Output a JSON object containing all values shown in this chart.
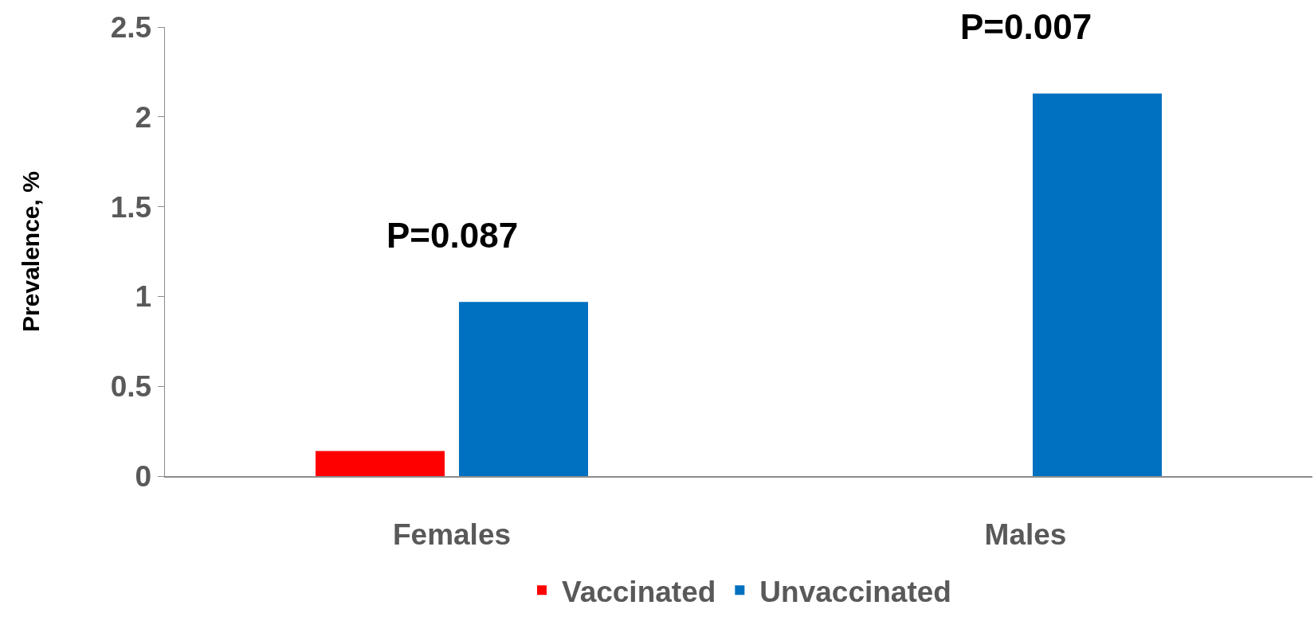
{
  "chart_data": {
    "type": "bar",
    "ylabel": "Prevalence, %",
    "categories": [
      "Females",
      "Males"
    ],
    "series": [
      {
        "name": "Vaccinated",
        "color": "#ff0000",
        "values": [
          0.14,
          0
        ]
      },
      {
        "name": "Unvaccinated",
        "color": "#0070c0",
        "values": [
          0.97,
          2.13
        ]
      }
    ],
    "ylim": [
      0,
      2.5
    ],
    "yticks": [
      0,
      0.5,
      1,
      1.5,
      2,
      2.5
    ],
    "grid": false,
    "legend": "bottom",
    "annotations": [
      "P=0.087",
      "P=0.007"
    ]
  }
}
